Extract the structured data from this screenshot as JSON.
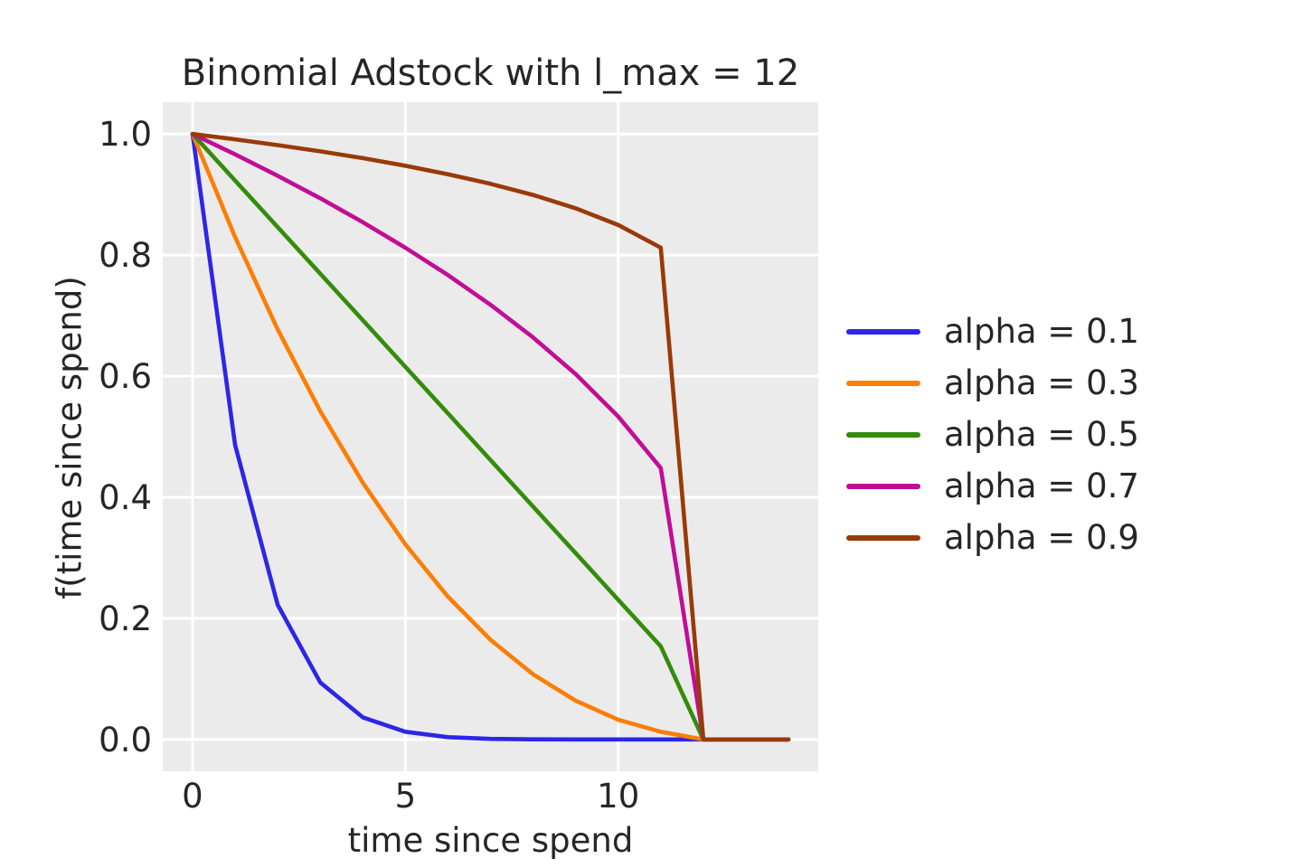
{
  "figure": {
    "background": "#ffffff",
    "axes_background": "#ebebeb",
    "grid_color": "#ffffff",
    "text_color": "#262626"
  },
  "chart_data": {
    "type": "line",
    "title": "Binomial Adstock with l_max = 12",
    "xlabel": "time since spend",
    "ylabel": "f(time since spend)",
    "xlim": [
      0,
      14
    ],
    "ylim": [
      0.0,
      1.0
    ],
    "grid": true,
    "legend_position": "right-outside",
    "xticks": [
      0,
      5,
      10
    ],
    "xtick_labels": [
      "0",
      "5",
      "10"
    ],
    "yticks": [
      0.0,
      0.2,
      0.4,
      0.6,
      0.8,
      1.0
    ],
    "ytick_labels": [
      "0.0",
      "0.2",
      "0.4",
      "0.6",
      "0.8",
      "1.0"
    ],
    "x": [
      0,
      1,
      2,
      3,
      4,
      5,
      6,
      7,
      8,
      9,
      10,
      11,
      12,
      13,
      14
    ],
    "series": [
      {
        "label": "alpha = 0.1",
        "color": "#2d26e6",
        "values": [
          1.0,
          0.4866,
          0.2224,
          0.0942,
          0.0365,
          0.0127,
          0.0038,
          0.001,
          0.0002,
          0.0,
          0.0,
          0.0,
          0.0,
          0.0,
          0.0
        ]
      },
      {
        "label": "alpha = 0.3",
        "color": "#fb7e06",
        "values": [
          1.0,
          0.8297,
          0.6772,
          0.5422,
          0.424,
          0.3221,
          0.2359,
          0.1646,
          0.1076,
          0.0639,
          0.0326,
          0.0127,
          0.0,
          0.0,
          0.0
        ]
      },
      {
        "label": "alpha = 0.5",
        "color": "#348c0a",
        "values": [
          1.0,
          0.9231,
          0.8462,
          0.7692,
          0.6923,
          0.6154,
          0.5385,
          0.4615,
          0.3846,
          0.3077,
          0.2308,
          0.1538,
          0.0,
          0.0,
          0.0
        ]
      },
      {
        "label": "alpha = 0.7",
        "color": "#c20d96",
        "values": [
          1.0,
          0.9663,
          0.9309,
          0.8937,
          0.8542,
          0.8121,
          0.767,
          0.7179,
          0.664,
          0.6034,
          0.5334,
          0.4483,
          0.0,
          0.0,
          0.0
        ]
      },
      {
        "label": "alpha = 0.9",
        "color": "#993a08",
        "values": [
          1.0,
          0.9911,
          0.9816,
          0.9713,
          0.96,
          0.9475,
          0.9335,
          0.9177,
          0.8993,
          0.8772,
          0.8497,
          0.8122,
          0.0,
          0.0,
          0.0
        ]
      }
    ]
  }
}
